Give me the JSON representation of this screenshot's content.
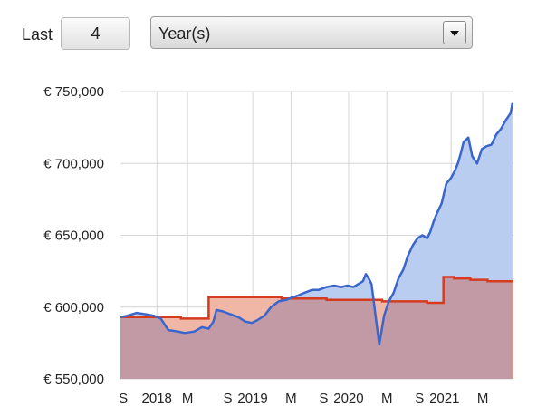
{
  "controls": {
    "last_label": "Last",
    "period_value": "4",
    "period_unit": "Year(s)"
  },
  "chart_data": {
    "type": "line",
    "ylim": [
      550000,
      750000
    ],
    "yticks": [
      550000,
      600000,
      650000,
      700000,
      750000
    ],
    "ytick_labels": [
      "€ 550,000",
      "€ 600,000",
      "€ 650,000",
      "€ 700,000",
      "€ 750,000"
    ],
    "xlim": [
      2017.55,
      2021.65
    ],
    "xticks": [
      {
        "x": 2017.58,
        "label": "S"
      },
      {
        "x": 2017.93,
        "label": "2018"
      },
      {
        "x": 2018.25,
        "label": "M"
      },
      {
        "x": 2018.67,
        "label": "S"
      },
      {
        "x": 2018.93,
        "label": "2019"
      },
      {
        "x": 2019.33,
        "label": "M"
      },
      {
        "x": 2019.67,
        "label": "S"
      },
      {
        "x": 2019.93,
        "label": "2020"
      },
      {
        "x": 2020.33,
        "label": "M"
      },
      {
        "x": 2020.67,
        "label": "S"
      },
      {
        "x": 2020.93,
        "label": "2021"
      },
      {
        "x": 2021.33,
        "label": "M"
      }
    ],
    "gridlines_x": [
      2017.93,
      2018.25,
      2018.93,
      2019.33,
      2019.93,
      2020.33,
      2021.0,
      2021.33
    ],
    "grid": true,
    "colors": {
      "value_line": "#3a66cc",
      "value_fill": "#b9cdf0",
      "deposit_line": "#d53b1f",
      "deposit_fill_below": "#c29aa6",
      "deposit_fill_above": "#f1b7a6"
    },
    "series": [
      {
        "role": "value",
        "x": [
          2017.55,
          2017.62,
          2017.72,
          2017.82,
          2017.9,
          2017.97,
          2018.05,
          2018.15,
          2018.22,
          2018.32,
          2018.4,
          2018.47,
          2018.52,
          2018.55,
          2018.62,
          2018.7,
          2018.78,
          2018.85,
          2018.92,
          2018.98,
          2019.05,
          2019.12,
          2019.2,
          2019.28,
          2019.35,
          2019.4,
          2019.47,
          2019.55,
          2019.62,
          2019.7,
          2019.78,
          2019.85,
          2019.92,
          2019.98,
          2020.03,
          2020.08,
          2020.11,
          2020.14,
          2020.17,
          2020.2,
          2020.25,
          2020.3,
          2020.35,
          2020.4,
          2020.45,
          2020.5,
          2020.55,
          2020.6,
          2020.65,
          2020.7,
          2020.75,
          2020.78,
          2020.82,
          2020.85,
          2020.9,
          2020.95,
          2021.0,
          2021.04,
          2021.07,
          2021.1,
          2021.13,
          2021.18,
          2021.22,
          2021.27,
          2021.32,
          2021.37,
          2021.42,
          2021.47,
          2021.52,
          2021.57,
          2021.62,
          2021.64
        ],
        "y": [
          593000,
          594000,
          596000,
          595000,
          594000,
          592000,
          584000,
          583000,
          582000,
          583000,
          586000,
          585000,
          590000,
          598000,
          597000,
          595000,
          593000,
          590000,
          589000,
          591000,
          594000,
          600000,
          604000,
          605000,
          607000,
          608000,
          610000,
          612000,
          612000,
          614000,
          615000,
          614000,
          615000,
          614000,
          616000,
          618000,
          623000,
          620000,
          616000,
          600000,
          574000,
          594000,
          604000,
          610000,
          620000,
          626000,
          636000,
          643000,
          648000,
          650000,
          648000,
          652000,
          660000,
          665000,
          672000,
          686000,
          690000,
          695000,
          700000,
          707000,
          715000,
          718000,
          705000,
          700000,
          710000,
          712000,
          713000,
          720000,
          724000,
          730000,
          735000,
          742000
        ]
      },
      {
        "role": "deposits",
        "x": [
          2017.55,
          2017.88,
          2017.88,
          2018.18,
          2018.18,
          2018.47,
          2018.47,
          2019.23,
          2019.23,
          2019.7,
          2019.7,
          2020.28,
          2020.28,
          2020.75,
          2020.75,
          2020.92,
          2020.92,
          2021.03,
          2021.03,
          2021.2,
          2021.2,
          2021.38,
          2021.38,
          2021.65
        ],
        "y": [
          593000,
          593000,
          593000,
          593000,
          592000,
          592000,
          607000,
          607000,
          606000,
          606000,
          605000,
          605000,
          604000,
          604000,
          603000,
          603000,
          621000,
          621000,
          620000,
          620000,
          619000,
          619000,
          618000,
          618000
        ]
      }
    ]
  }
}
